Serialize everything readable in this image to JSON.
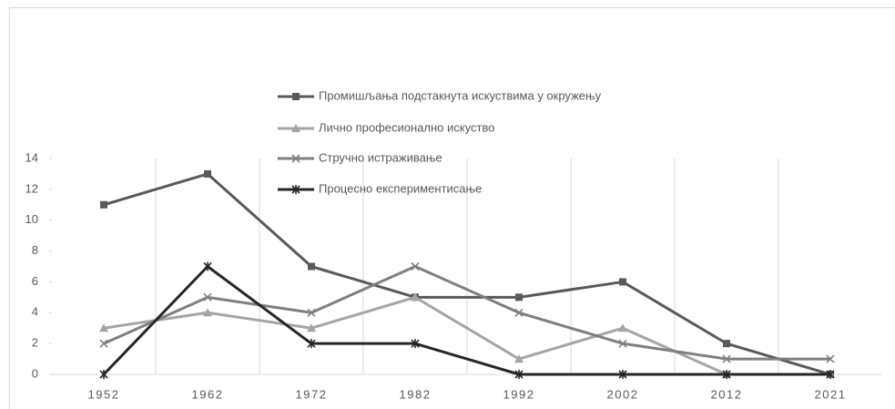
{
  "chart_data": {
    "type": "line",
    "categories": [
      "1952",
      "1962",
      "1972",
      "1982",
      "1992",
      "2002",
      "2012",
      "2021"
    ],
    "series": [
      {
        "name": "Промишљања подстакнута искуствима у окружењу",
        "color": "#595959",
        "marker": "square",
        "values": [
          11,
          13,
          7,
          5,
          5,
          6,
          2,
          0
        ]
      },
      {
        "name": "Лично професионално искуство",
        "color": "#a5a5a5",
        "marker": "triangle",
        "values": [
          3,
          4,
          3,
          5,
          1,
          3,
          0,
          0
        ]
      },
      {
        "name": "Стручно истраживање",
        "color": "#7f7f7f",
        "marker": "x",
        "values": [
          2,
          5,
          4,
          7,
          4,
          2,
          1,
          1
        ]
      },
      {
        "name": "Процесно експериментисање",
        "color": "#262626",
        "marker": "star",
        "values": [
          0,
          7,
          2,
          2,
          0,
          0,
          0,
          0
        ]
      }
    ],
    "ylim": [
      0,
      14
    ],
    "yticks": [
      0,
      2,
      4,
      6,
      8,
      10,
      12,
      14
    ],
    "grid": "vertical"
  }
}
